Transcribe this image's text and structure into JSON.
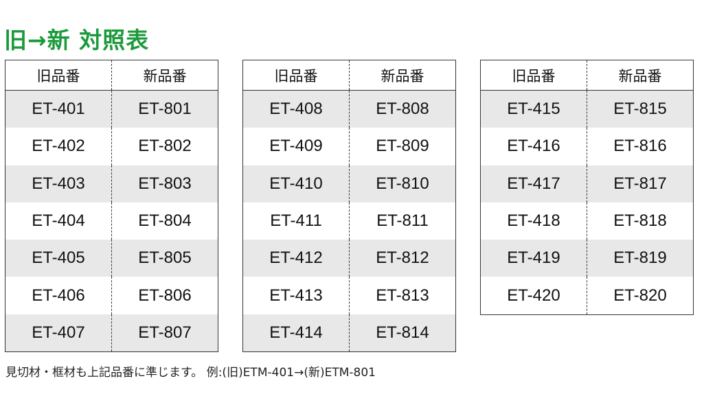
{
  "title": "旧→新 対照表",
  "headers": {
    "old": "旧品番",
    "new": "新品番"
  },
  "colors": {
    "title": "#1a9a3a",
    "alt_row": "#e8e8e8"
  },
  "tables": [
    {
      "rows": [
        [
          "ET-401",
          "ET-801"
        ],
        [
          "ET-402",
          "ET-802"
        ],
        [
          "ET-403",
          "ET-803"
        ],
        [
          "ET-404",
          "ET-804"
        ],
        [
          "ET-405",
          "ET-805"
        ],
        [
          "ET-406",
          "ET-806"
        ],
        [
          "ET-407",
          "ET-807"
        ]
      ]
    },
    {
      "rows": [
        [
          "ET-408",
          "ET-808"
        ],
        [
          "ET-409",
          "ET-809"
        ],
        [
          "ET-410",
          "ET-810"
        ],
        [
          "ET-411",
          "ET-811"
        ],
        [
          "ET-412",
          "ET-812"
        ],
        [
          "ET-413",
          "ET-813"
        ],
        [
          "ET-414",
          "ET-814"
        ]
      ]
    },
    {
      "rows": [
        [
          "ET-415",
          "ET-815"
        ],
        [
          "ET-416",
          "ET-816"
        ],
        [
          "ET-417",
          "ET-817"
        ],
        [
          "ET-418",
          "ET-818"
        ],
        [
          "ET-419",
          "ET-819"
        ],
        [
          "ET-420",
          "ET-820"
        ]
      ]
    }
  ],
  "note": "見切材・框材も上記品番に準じます。 例:(旧)ETM-401→(新)ETM-801"
}
